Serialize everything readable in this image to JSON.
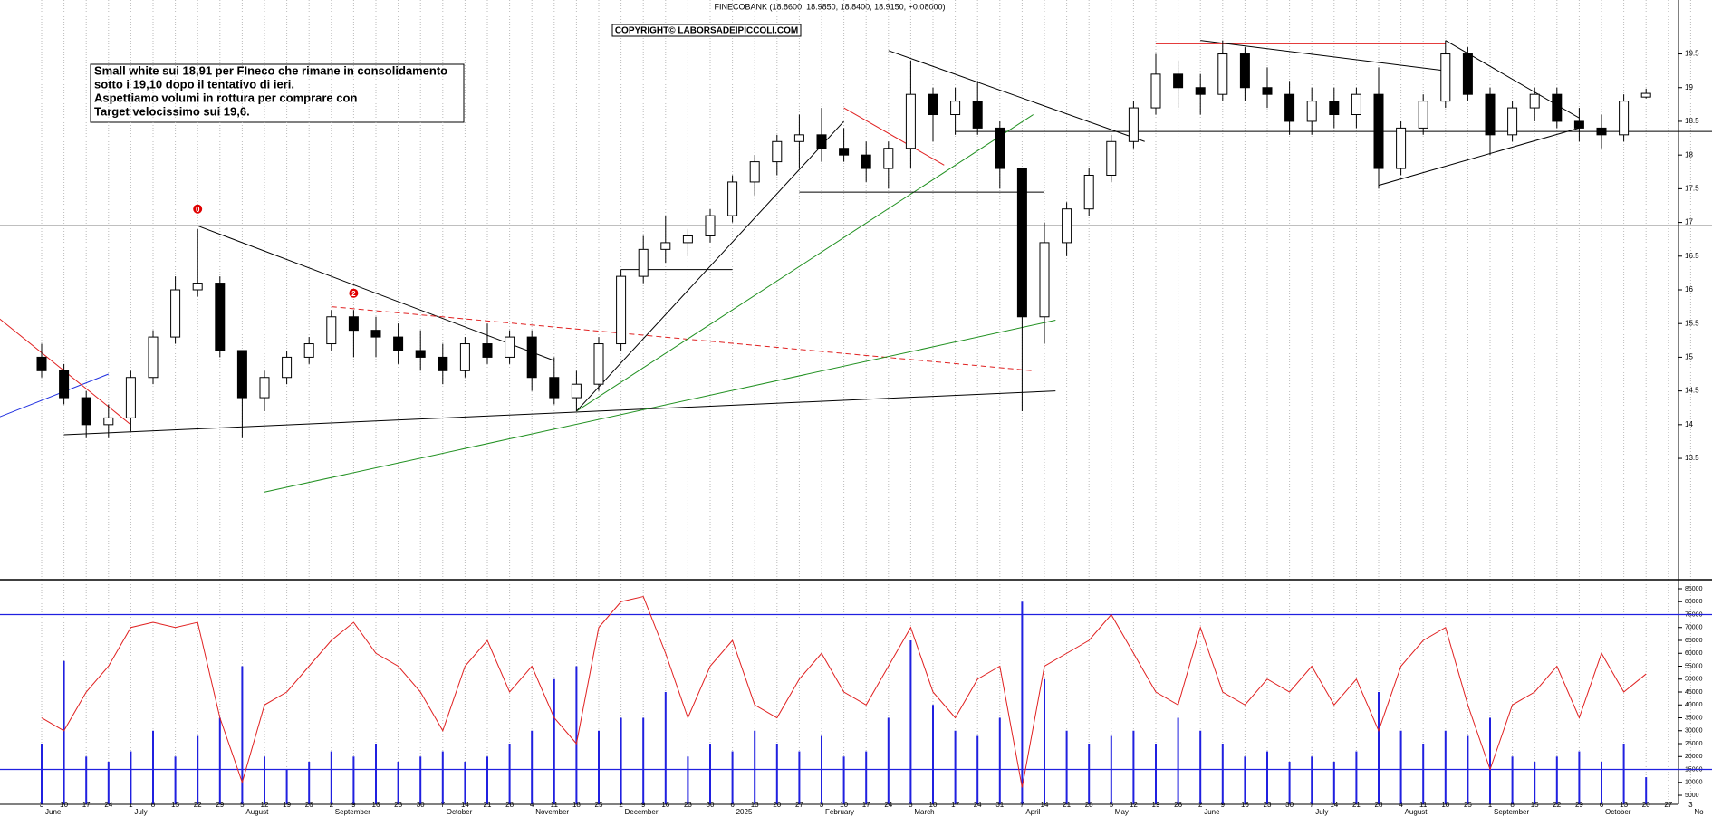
{
  "chart_data": [
    {
      "type": "candlestick",
      "title": "FINECOBANK (18.8600, 18.9850, 18.8400, 18.9150, +0.08000)",
      "watermark": "COPYRIGHT© LABORSADEIPICCOLI.COM",
      "annotation": [
        "Small white sui 18,91 per FIneco che rimane in consolidamento",
        "sotto i 19,10 dopo il tentativo di ieri.",
        "Aspettiamo volumi in rottura per comprare con",
        "Target velocissimo sui 19,6."
      ],
      "categories": [
        "3",
        "10",
        "17",
        "24",
        "1",
        "8",
        "15",
        "22",
        "29",
        "5",
        "12",
        "19",
        "26",
        "2",
        "9",
        "16",
        "23",
        "30",
        "7",
        "14",
        "21",
        "28",
        "4",
        "11",
        "18",
        "25",
        "2",
        "9",
        "16",
        "23",
        "30",
        "6",
        "13",
        "20",
        "27",
        "3",
        "10",
        "17",
        "24",
        "3",
        "10",
        "17",
        "24",
        "31",
        "7",
        "14",
        "21",
        "28",
        "5",
        "12",
        "19",
        "26",
        "2",
        "9",
        "16",
        "23",
        "30",
        "7",
        "14",
        "21",
        "28",
        "4",
        "11",
        "18",
        "25",
        "1",
        "8",
        "15",
        "22",
        "29",
        "6",
        "13",
        "20",
        "27",
        "3"
      ],
      "months": [
        "June",
        null,
        null,
        null,
        "July",
        null,
        null,
        null,
        null,
        "August",
        null,
        null,
        null,
        "September",
        null,
        null,
        null,
        null,
        "October",
        null,
        null,
        null,
        "November",
        null,
        null,
        null,
        "December",
        null,
        null,
        null,
        null,
        "2025",
        null,
        null,
        null,
        "February",
        null,
        null,
        null,
        "March",
        null,
        null,
        null,
        null,
        "April",
        null,
        null,
        null,
        "May",
        null,
        null,
        null,
        "June",
        null,
        null,
        null,
        null,
        "July",
        null,
        null,
        null,
        "August",
        null,
        null,
        null,
        "September",
        null,
        null,
        null,
        null,
        "October",
        null,
        null,
        null,
        "No"
      ],
      "ohlc": [
        [
          15.0,
          15.2,
          14.7,
          14.8
        ],
        [
          14.8,
          14.9,
          14.3,
          14.4
        ],
        [
          14.4,
          14.5,
          13.8,
          14.0
        ],
        [
          14.0,
          14.3,
          13.8,
          14.1
        ],
        [
          14.1,
          14.8,
          13.9,
          14.7
        ],
        [
          14.7,
          15.4,
          14.6,
          15.3
        ],
        [
          15.3,
          16.2,
          15.2,
          16.0
        ],
        [
          16.0,
          16.9,
          15.9,
          16.1
        ],
        [
          16.1,
          16.2,
          15.0,
          15.1
        ],
        [
          15.1,
          15.1,
          13.8,
          14.4
        ],
        [
          14.4,
          14.8,
          14.2,
          14.7
        ],
        [
          14.7,
          15.1,
          14.6,
          15.0
        ],
        [
          15.0,
          15.3,
          14.9,
          15.2
        ],
        [
          15.2,
          15.7,
          15.1,
          15.6
        ],
        [
          15.6,
          15.7,
          15.0,
          15.4
        ],
        [
          15.4,
          15.6,
          15.0,
          15.3
        ],
        [
          15.3,
          15.5,
          14.9,
          15.1
        ],
        [
          15.1,
          15.4,
          14.8,
          15.0
        ],
        [
          15.0,
          15.2,
          14.6,
          14.8
        ],
        [
          14.8,
          15.3,
          14.7,
          15.2
        ],
        [
          15.2,
          15.5,
          14.9,
          15.0
        ],
        [
          15.0,
          15.4,
          14.9,
          15.3
        ],
        [
          15.3,
          15.4,
          14.5,
          14.7
        ],
        [
          14.7,
          15.0,
          14.3,
          14.4
        ],
        [
          14.4,
          14.8,
          14.2,
          14.6
        ],
        [
          14.6,
          15.3,
          14.5,
          15.2
        ],
        [
          15.2,
          16.3,
          15.1,
          16.2
        ],
        [
          16.2,
          16.8,
          16.1,
          16.6
        ],
        [
          16.6,
          17.1,
          16.4,
          16.7
        ],
        [
          16.7,
          16.9,
          16.5,
          16.8
        ],
        [
          16.8,
          17.2,
          16.7,
          17.1
        ],
        [
          17.1,
          17.7,
          17.0,
          17.6
        ],
        [
          17.6,
          18.0,
          17.4,
          17.9
        ],
        [
          17.9,
          18.3,
          17.7,
          18.2
        ],
        [
          18.2,
          18.6,
          17.8,
          18.3
        ],
        [
          18.3,
          18.7,
          17.9,
          18.1
        ],
        [
          18.1,
          18.4,
          17.9,
          18.0
        ],
        [
          18.0,
          18.2,
          17.6,
          17.8
        ],
        [
          17.8,
          18.2,
          17.5,
          18.1
        ],
        [
          18.1,
          19.4,
          17.8,
          18.9
        ],
        [
          18.9,
          19.0,
          18.2,
          18.6
        ],
        [
          18.6,
          19.0,
          18.3,
          18.8
        ],
        [
          18.8,
          19.1,
          18.3,
          18.4
        ],
        [
          18.4,
          18.5,
          17.5,
          17.8
        ],
        [
          17.8,
          17.8,
          14.2,
          15.6
        ],
        [
          15.6,
          17.0,
          15.2,
          16.7
        ],
        [
          16.7,
          17.3,
          16.5,
          17.2
        ],
        [
          17.2,
          17.8,
          17.1,
          17.7
        ],
        [
          17.7,
          18.3,
          17.6,
          18.2
        ],
        [
          18.2,
          18.8,
          18.1,
          18.7
        ],
        [
          18.7,
          19.5,
          18.6,
          19.2
        ],
        [
          19.2,
          19.4,
          18.7,
          19.0
        ],
        [
          19.0,
          19.2,
          18.6,
          18.9
        ],
        [
          18.9,
          19.7,
          18.8,
          19.5
        ],
        [
          19.5,
          19.6,
          18.8,
          19.0
        ],
        [
          19.0,
          19.3,
          18.7,
          18.9
        ],
        [
          18.9,
          19.1,
          18.3,
          18.5
        ],
        [
          18.5,
          19.0,
          18.3,
          18.8
        ],
        [
          18.8,
          19.0,
          18.4,
          18.6
        ],
        [
          18.6,
          19.0,
          18.4,
          18.9
        ],
        [
          18.9,
          19.3,
          17.5,
          17.8
        ],
        [
          17.8,
          18.5,
          17.7,
          18.4
        ],
        [
          18.4,
          18.9,
          18.3,
          18.8
        ],
        [
          18.8,
          19.7,
          18.7,
          19.5
        ],
        [
          19.5,
          19.6,
          18.8,
          18.9
        ],
        [
          18.9,
          19.0,
          18.0,
          18.3
        ],
        [
          18.3,
          18.8,
          18.2,
          18.7
        ],
        [
          18.7,
          19.0,
          18.5,
          18.9
        ],
        [
          18.9,
          19.0,
          18.4,
          18.5
        ],
        [
          18.5,
          18.7,
          18.2,
          18.4
        ],
        [
          18.4,
          18.6,
          18.1,
          18.3
        ],
        [
          18.3,
          18.9,
          18.2,
          18.8
        ],
        [
          18.86,
          18.985,
          18.84,
          18.915
        ],
        null,
        null
      ],
      "ylim": [
        11.7,
        20.3
      ],
      "yticks": [
        13.5,
        14.0,
        14.5,
        15.0,
        15.5,
        16.0,
        16.5,
        17.0,
        17.5,
        18.0,
        18.5,
        19.0,
        19.5
      ],
      "hlines": [
        16.95,
        18.35
      ],
      "trendlines": [
        {
          "from": [
            1,
            13.85
          ],
          "to": [
            45.5,
            14.5
          ],
          "color": "#000000"
        },
        {
          "from": [
            7,
            16.95
          ],
          "to": [
            23,
            14.95
          ],
          "color": "#000000"
        },
        {
          "from": [
            13,
            15.75
          ],
          "to": [
            44.5,
            14.8
          ],
          "color": "#e02020"
        },
        {
          "from": [
            10,
            13.0
          ],
          "to": [
            45.5,
            15.55
          ],
          "color": "#209020"
        },
        {
          "from": [
            24,
            14.2
          ],
          "to": [
            44.5,
            18.6
          ],
          "color": "#209020"
        },
        {
          "from": [
            24,
            14.2
          ],
          "to": [
            36,
            18.5
          ],
          "color": "#000000"
        },
        {
          "from": [
            38,
            19.55
          ],
          "to": [
            49.5,
            18.2
          ],
          "color": "#000000"
        },
        {
          "from": [
            36,
            18.7
          ],
          "to": [
            40.5,
            17.85
          ],
          "color": "#e02020"
        },
        {
          "from": [
            34,
            17.45
          ],
          "to": [
            45,
            17.45
          ],
          "color": "#000000"
        },
        {
          "from": [
            26,
            16.3
          ],
          "to": [
            31,
            16.3
          ],
          "color": "#000000"
        },
        {
          "from": [
            50,
            19.65
          ],
          "to": [
            63,
            19.65
          ],
          "color": "#e02020"
        },
        {
          "from": [
            52,
            19.7
          ],
          "to": [
            63,
            19.25
          ],
          "color": "#000000"
        },
        {
          "from": [
            60,
            17.55
          ],
          "to": [
            69,
            18.4
          ],
          "color": "#000000"
        },
        {
          "from": [
            63,
            19.7
          ],
          "to": [
            69,
            18.55
          ],
          "color": "#000000"
        },
        {
          "from": [
            -2,
            14.1
          ],
          "to": [
            3,
            14.75
          ],
          "color": "#2030e0"
        },
        {
          "from": [
            -2,
            15.6
          ],
          "to": [
            4,
            14.0
          ],
          "color": "#e02020"
        }
      ],
      "markers": [
        {
          "label": "0",
          "x": 7,
          "y": 17.2
        },
        {
          "label": "2",
          "x": 14,
          "y": 15.95
        }
      ]
    },
    {
      "type": "volume",
      "series": [
        {
          "color": "#2020e0",
          "values": [
            25000,
            57000,
            20000,
            18000,
            22000,
            30000,
            20000,
            28000,
            35000,
            55000,
            20000,
            15000,
            18000,
            22000,
            20000,
            25000,
            18000,
            20000,
            22000,
            18000,
            20000,
            25000,
            30000,
            50000,
            55000,
            30000,
            35000,
            35000,
            45000,
            20000,
            25000,
            22000,
            30000,
            25000,
            22000,
            28000,
            20000,
            22000,
            35000,
            65000,
            40000,
            30000,
            28000,
            35000,
            80000,
            50000,
            30000,
            25000,
            28000,
            30000,
            25000,
            35000,
            30000,
            25000,
            20000,
            22000,
            18000,
            20000,
            18000,
            22000,
            45000,
            30000,
            25000,
            30000,
            28000,
            35000,
            20000,
            18000,
            20000,
            22000,
            18000,
            25000,
            12000,
            null,
            null
          ]
        },
        {
          "color": "#e02020",
          "values": [
            35000,
            30000,
            45000,
            55000,
            70000,
            72000,
            70000,
            72000,
            35000,
            10000,
            40000,
            45000,
            55000,
            65000,
            72000,
            60000,
            55000,
            45000,
            30000,
            55000,
            65000,
            45000,
            55000,
            35000,
            25000,
            70000,
            80000,
            82000,
            60000,
            35000,
            55000,
            65000,
            40000,
            35000,
            50000,
            60000,
            45000,
            40000,
            55000,
            70000,
            45000,
            35000,
            50000,
            55000,
            8000,
            55000,
            60000,
            65000,
            75000,
            60000,
            45000,
            40000,
            70000,
            45000,
            40000,
            50000,
            45000,
            55000,
            40000,
            50000,
            30000,
            55000,
            65000,
            70000,
            40000,
            15000,
            40000,
            45000,
            55000,
            35000,
            60000,
            45000,
            52000,
            null,
            null
          ]
        }
      ],
      "ylim": [
        1500,
        86750
      ],
      "yticks": [
        5000,
        10000,
        15000,
        20000,
        25000,
        30000,
        35000,
        40000,
        45000,
        50000,
        55000,
        60000,
        65000,
        70000,
        75000,
        80000,
        85000
      ],
      "hlines": [
        75000,
        15000
      ]
    }
  ]
}
